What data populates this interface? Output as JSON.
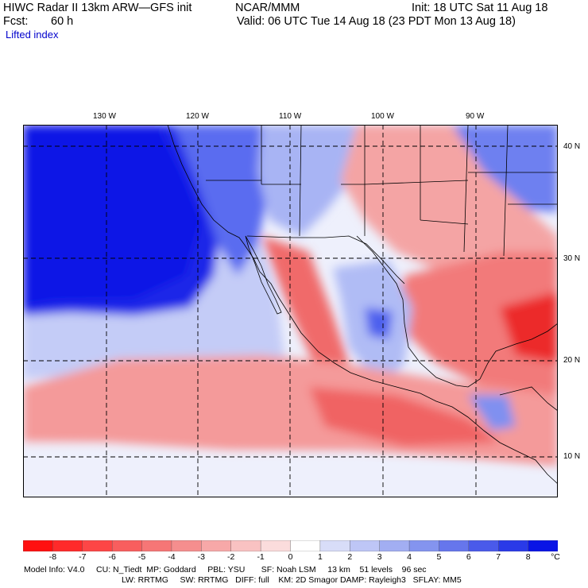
{
  "header": {
    "title": "HIWC Radar II 13km ARW—GFS init",
    "org": "NCAR/MMM",
    "init": "Init: 18 UTC Sat 11 Aug 18",
    "fcst_label": "Fcst:",
    "fcst_value": "60 h",
    "valid": "Valid: 06 UTC Tue 14 Aug 18 (23 PDT Mon 13 Aug 18)",
    "field": "Lifted index"
  },
  "map": {
    "lon_labels": [
      "130 W",
      "120 W",
      "110 W",
      "100 W",
      "90 W"
    ],
    "lat_labels": [
      "40 N",
      "30 N",
      "20 N",
      "10 N"
    ],
    "colors": {
      "deep_blue": "#0a14e6",
      "mid_blue": "#5a6cf0",
      "light_blue": "#b8c4f6",
      "pale": "#eef0fc",
      "light_red": "#f7b8b8",
      "mid_red": "#f47e7e",
      "deep_red": "#ec2a2a",
      "land_line": "#000000"
    }
  },
  "colorbar": {
    "unit": "°C",
    "ticks": [
      "-8",
      "-7",
      "-6",
      "-5",
      "-4",
      "-3",
      "-2",
      "-1",
      "0",
      "1",
      "2",
      "3",
      "4",
      "5",
      "6",
      "7",
      "8"
    ],
    "colors": [
      "#ff1010",
      "#ff2a2a",
      "#fd4646",
      "#f85e5e",
      "#f67676",
      "#f58e8e",
      "#f7a8a8",
      "#f9c2c2",
      "#fbdcdc",
      "#ffffff",
      "#d8ddf8",
      "#bec6f6",
      "#a2aef2",
      "#8494ef",
      "#6676ec",
      "#4a5aea",
      "#2a3ae8",
      "#0a14e6"
    ]
  },
  "footer": {
    "line1": "Model Info: V4.0     CU: N_Tiedt  MP: Goddard     PBL: YSU       SF: Noah LSM     13 km    51 levels    96 sec",
    "line2": "LW: RRTMG     SW: RRTMG   DIFF: full    KM: 2D Smagor DAMP: Rayleigh3   SFLAY: MM5"
  }
}
